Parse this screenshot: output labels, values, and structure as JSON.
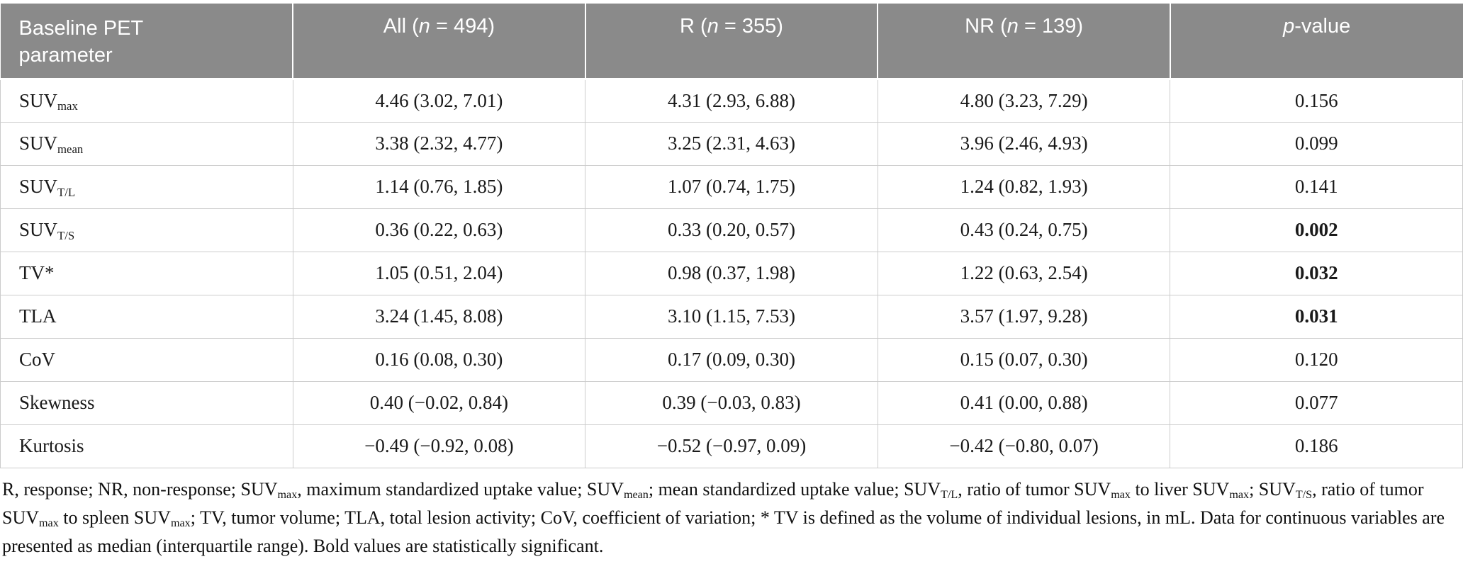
{
  "table": {
    "header": [
      {
        "segments": [
          {
            "t": "Baseline PET parameter"
          }
        ]
      },
      {
        "segments": [
          {
            "t": "All ("
          },
          {
            "i": "n"
          },
          {
            "t": " = 494)"
          }
        ]
      },
      {
        "segments": [
          {
            "t": "R ("
          },
          {
            "i": "n"
          },
          {
            "t": " = 355)"
          }
        ]
      },
      {
        "segments": [
          {
            "t": "NR ("
          },
          {
            "i": "n"
          },
          {
            "t": " = 139)"
          }
        ]
      },
      {
        "segments": [
          {
            "i": "p"
          },
          {
            "t": "-value"
          }
        ]
      }
    ],
    "rows": [
      {
        "param": [
          {
            "t": "SUV"
          },
          {
            "sub": "max"
          }
        ],
        "all": "4.46 (3.02, 7.01)",
        "r": "4.31 (2.93, 6.88)",
        "nr": "4.80 (3.23, 7.29)",
        "p": "0.156",
        "p_bold": false
      },
      {
        "param": [
          {
            "t": "SUV"
          },
          {
            "sub": "mean"
          }
        ],
        "all": "3.38 (2.32, 4.77)",
        "r": "3.25 (2.31, 4.63)",
        "nr": "3.96 (2.46, 4.93)",
        "p": "0.099",
        "p_bold": false
      },
      {
        "param": [
          {
            "t": "SUV"
          },
          {
            "sub": "T/L"
          }
        ],
        "all": "1.14 (0.76, 1.85)",
        "r": "1.07 (0.74, 1.75)",
        "nr": "1.24 (0.82, 1.93)",
        "p": "0.141",
        "p_bold": false
      },
      {
        "param": [
          {
            "t": "SUV"
          },
          {
            "sub": "T/S"
          }
        ],
        "all": "0.36 (0.22, 0.63)",
        "r": "0.33 (0.20, 0.57)",
        "nr": "0.43 (0.24, 0.75)",
        "p": "0.002",
        "p_bold": true
      },
      {
        "param": [
          {
            "t": "TV*"
          }
        ],
        "all": "1.05 (0.51, 2.04)",
        "r": "0.98 (0.37, 1.98)",
        "nr": "1.22 (0.63, 2.54)",
        "p": "0.032",
        "p_bold": true
      },
      {
        "param": [
          {
            "t": "TLA"
          }
        ],
        "all": "3.24 (1.45, 8.08)",
        "r": "3.10 (1.15, 7.53)",
        "nr": "3.57 (1.97, 9.28)",
        "p": "0.031",
        "p_bold": true
      },
      {
        "param": [
          {
            "t": "CoV"
          }
        ],
        "all": "0.16 (0.08, 0.30)",
        "r": "0.17 (0.09, 0.30)",
        "nr": "0.15 (0.07, 0.30)",
        "p": "0.120",
        "p_bold": false
      },
      {
        "param": [
          {
            "t": "Skewness"
          }
        ],
        "all": "0.40 (−0.02, 0.84)",
        "r": "0.39 (−0.03, 0.83)",
        "nr": "0.41 (0.00, 0.88)",
        "p": "0.077",
        "p_bold": false
      },
      {
        "param": [
          {
            "t": "Kurtosis"
          }
        ],
        "all": "−0.49 (−0.92, 0.08)",
        "r": "−0.52 (−0.97, 0.09)",
        "nr": "−0.42 (−0.80, 0.07)",
        "p": "0.186",
        "p_bold": false
      }
    ]
  },
  "footnote": {
    "segments": [
      {
        "t": "R, response; NR, non-response; SUV"
      },
      {
        "sub": "max"
      },
      {
        "t": ", maximum standardized uptake value; SUV"
      },
      {
        "sub": "mean"
      },
      {
        "t": "; mean standardized uptake value; SUV"
      },
      {
        "sub": "T/L"
      },
      {
        "t": ", ratio of tumor SUV"
      },
      {
        "sub": "max"
      },
      {
        "t": " to liver SUV"
      },
      {
        "sub": "max"
      },
      {
        "t": "; SUV"
      },
      {
        "sub": "T/S"
      },
      {
        "t": ", ratio of tumor SUV"
      },
      {
        "sub": "max"
      },
      {
        "t": " to spleen SUV"
      },
      {
        "sub": "max"
      },
      {
        "t": "; TV, tumor volume; TLA, total lesion activity; CoV, coefficient of variation; * TV is defined as the volume of individual lesions, in mL. Data for continuous variables are presented as median (interquartile range). Bold values are statistically significant."
      }
    ]
  },
  "colors": {
    "header_bg": "#8a8a8a",
    "header_text": "#ffffff",
    "row_border": "#cccccc",
    "body_text": "#1a1a1a"
  }
}
